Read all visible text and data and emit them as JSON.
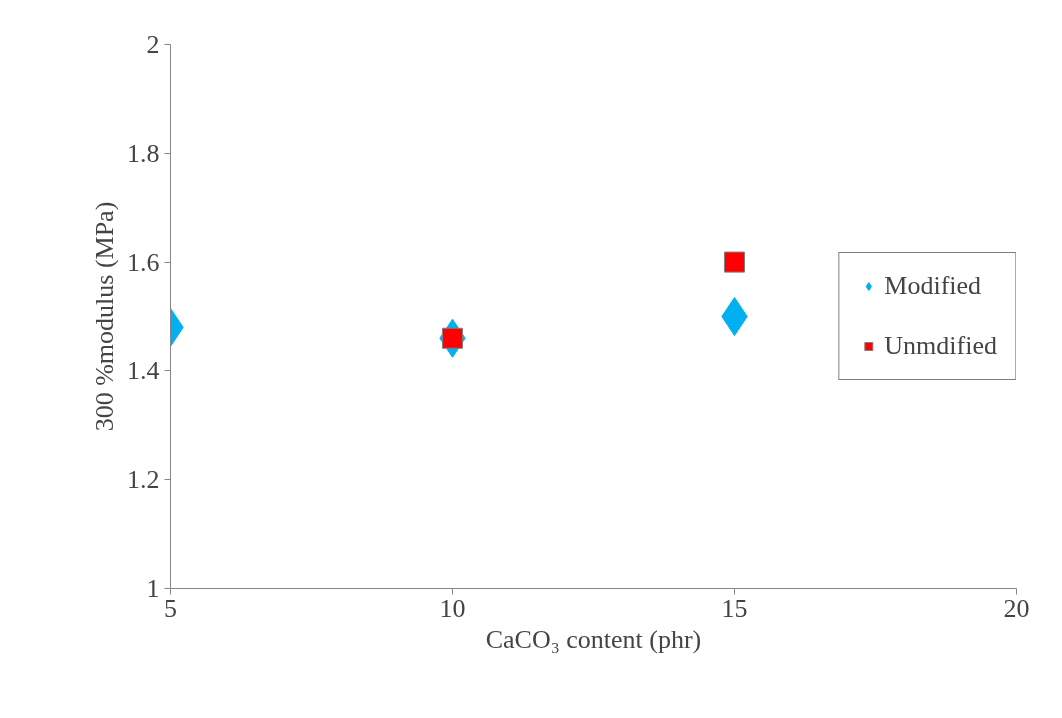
{
  "chart_data": {
    "type": "scatter",
    "xlabel": "CaCO₃ content (phr)",
    "ylabel": "300 %modulus (MPa)",
    "xlim": [
      5,
      20
    ],
    "xticks": [
      5,
      10,
      15,
      20
    ],
    "ylim": [
      1,
      2
    ],
    "yticks": [
      1,
      1.2,
      1.4,
      1.6,
      1.8,
      2
    ],
    "grid": false,
    "legend": "right",
    "series": [
      {
        "name": "Modified",
        "color": "#00b0f0",
        "marker": "diamond",
        "x": [
          5,
          10,
          15
        ],
        "values": [
          1.48,
          1.46,
          1.5
        ]
      },
      {
        "name": "Unmdified",
        "color": "#ff0000",
        "marker": "square",
        "x": [
          10,
          15
        ],
        "values": [
          1.46,
          1.6
        ]
      }
    ]
  }
}
